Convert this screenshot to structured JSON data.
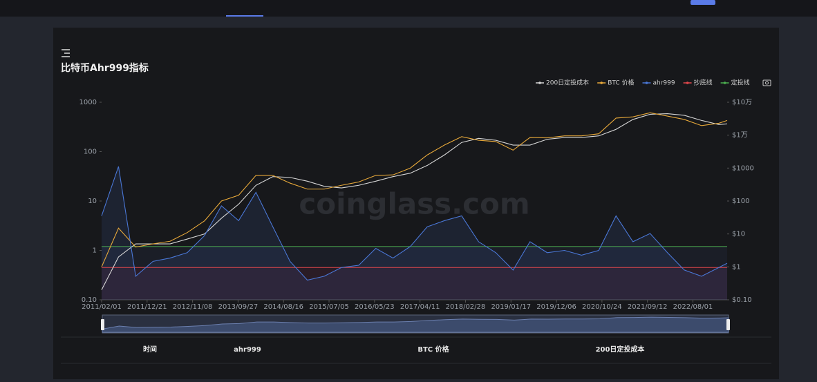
{
  "chart_data": {
    "type": "line",
    "title": "比特币Ahr999指标",
    "watermark": "coinglass.com",
    "x": [
      "2011/02/01",
      "2011/06/01",
      "2011/10/01",
      "2012/02/01",
      "2012/06/01",
      "2012/10/01",
      "2013/02/01",
      "2013/06/01",
      "2013/10/01",
      "2014/02/01",
      "2014/06/01",
      "2014/10/01",
      "2015/02/01",
      "2015/06/01",
      "2015/10/01",
      "2016/02/01",
      "2016/06/01",
      "2016/10/01",
      "2017/02/01",
      "2017/06/01",
      "2017/10/01",
      "2018/02/01",
      "2018/06/01",
      "2018/10/01",
      "2019/02/01",
      "2019/06/01",
      "2019/10/01",
      "2020/02/01",
      "2020/06/01",
      "2020/10/01",
      "2021/02/01",
      "2021/06/01",
      "2021/10/01",
      "2022/02/01",
      "2022/06/01",
      "2022/10/01",
      "2023/02/01",
      "2023/04/01"
    ],
    "series": [
      {
        "name": "200日定投成本",
        "color": "#d6d6d6",
        "axis": "y2",
        "values": [
          0.2,
          2,
          5,
          5,
          5,
          7,
          10,
          30,
          80,
          300,
          550,
          520,
          400,
          280,
          250,
          300,
          400,
          550,
          700,
          1200,
          2500,
          6000,
          8000,
          7000,
          5000,
          5000,
          7500,
          8500,
          8500,
          9500,
          15000,
          30000,
          43000,
          45000,
          40000,
          28000,
          21000,
          22000
        ]
      },
      {
        "name": "BTC 价格",
        "color": "#e8a93a",
        "axis": "y2",
        "values": [
          1,
          15,
          4,
          5,
          6,
          11,
          25,
          100,
          150,
          600,
          600,
          350,
          230,
          230,
          300,
          380,
          600,
          620,
          1000,
          2500,
          5000,
          9000,
          7000,
          6400,
          3500,
          8500,
          8300,
          9500,
          9500,
          11000,
          33000,
          36000,
          48000,
          38000,
          30000,
          19500,
          23000,
          28000
        ]
      },
      {
        "name": "ahr999",
        "color": "#4a77d6",
        "values": [
          5,
          50,
          0.3,
          0.6,
          0.7,
          0.9,
          2,
          8,
          4,
          15,
          3,
          0.6,
          0.25,
          0.3,
          0.45,
          0.5,
          1.1,
          0.7,
          1.2,
          3,
          4,
          5,
          1.5,
          0.9,
          0.4,
          1.5,
          0.9,
          1,
          0.8,
          1,
          5,
          1.5,
          2.2,
          0.9,
          0.4,
          0.3,
          0.45,
          0.55
        ]
      },
      {
        "name": "抄底线",
        "color": "#e0474c",
        "value": 0.45
      },
      {
        "name": "定投线",
        "color": "#4caf50",
        "value": 1.2
      }
    ],
    "log_scale": true,
    "grid": false,
    "ylim": [
      0.1,
      1000
    ],
    "yticks": [
      {
        "value": 0.1,
        "label": "0.10"
      },
      1,
      10,
      100,
      1000
    ],
    "y2lim": [
      0.1,
      100000
    ],
    "y2ticks": [
      {
        "value": 0.1,
        "label": "$0.10"
      },
      {
        "value": 1,
        "label": "$1"
      },
      {
        "value": 10,
        "label": "$10"
      },
      {
        "value": 100,
        "label": "$100"
      },
      {
        "value": 1000,
        "label": "$1000"
      },
      {
        "value": 10000,
        "label": "$1万"
      },
      {
        "value": 100000,
        "label": "$10万"
      }
    ],
    "xticks": [
      "2011/02/01",
      "2011/12/21",
      "2012/11/08",
      "2013/09/27",
      "2014/08/16",
      "2015/07/05",
      "2016/05/23",
      "2017/04/11",
      "2018/02/28",
      "2019/01/17",
      "2019/12/06",
      "2020/10/24",
      "2021/09/12",
      "2022/08/01"
    ]
  },
  "table": {
    "header": [
      "时间",
      "ahr999",
      "BTC 价格",
      "200日定投成本"
    ]
  }
}
